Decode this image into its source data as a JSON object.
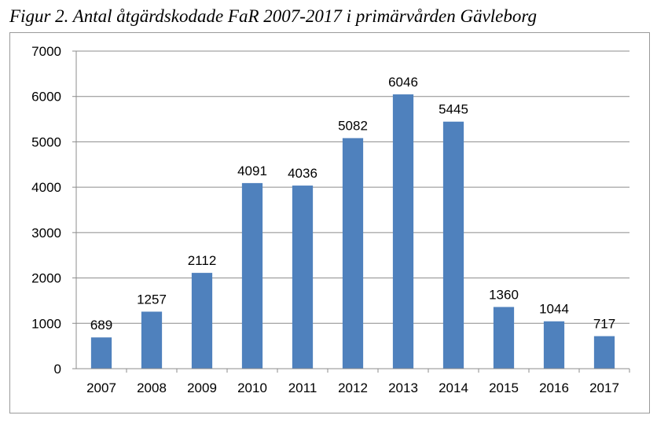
{
  "figure": {
    "caption": "Figur 2. Antal åtgärdskodade FaR 2007-2017 i primärvården Gävleborg"
  },
  "chart_data": {
    "type": "bar",
    "title": "",
    "xlabel": "",
    "ylabel": "",
    "categories": [
      "2007",
      "2008",
      "2009",
      "2010",
      "2011",
      "2012",
      "2013",
      "2014",
      "2015",
      "2016",
      "2017"
    ],
    "values": [
      689,
      1257,
      2112,
      4091,
      4036,
      5082,
      6046,
      5445,
      1360,
      1044,
      717
    ],
    "data_labels": [
      "689",
      "1257",
      "2112",
      "4091",
      "4036",
      "5082",
      "6046",
      "5445",
      "1360",
      "1044",
      "717"
    ],
    "ylim": [
      0,
      7000
    ],
    "yticks": [
      0,
      1000,
      2000,
      3000,
      4000,
      5000,
      6000,
      7000
    ],
    "ytick_labels": [
      "0",
      "1000",
      "2000",
      "3000",
      "4000",
      "5000",
      "6000",
      "7000"
    ],
    "grid": true,
    "legend": "none",
    "bar_color": "#4f81bd",
    "grid_color": "#8c8c8c"
  }
}
